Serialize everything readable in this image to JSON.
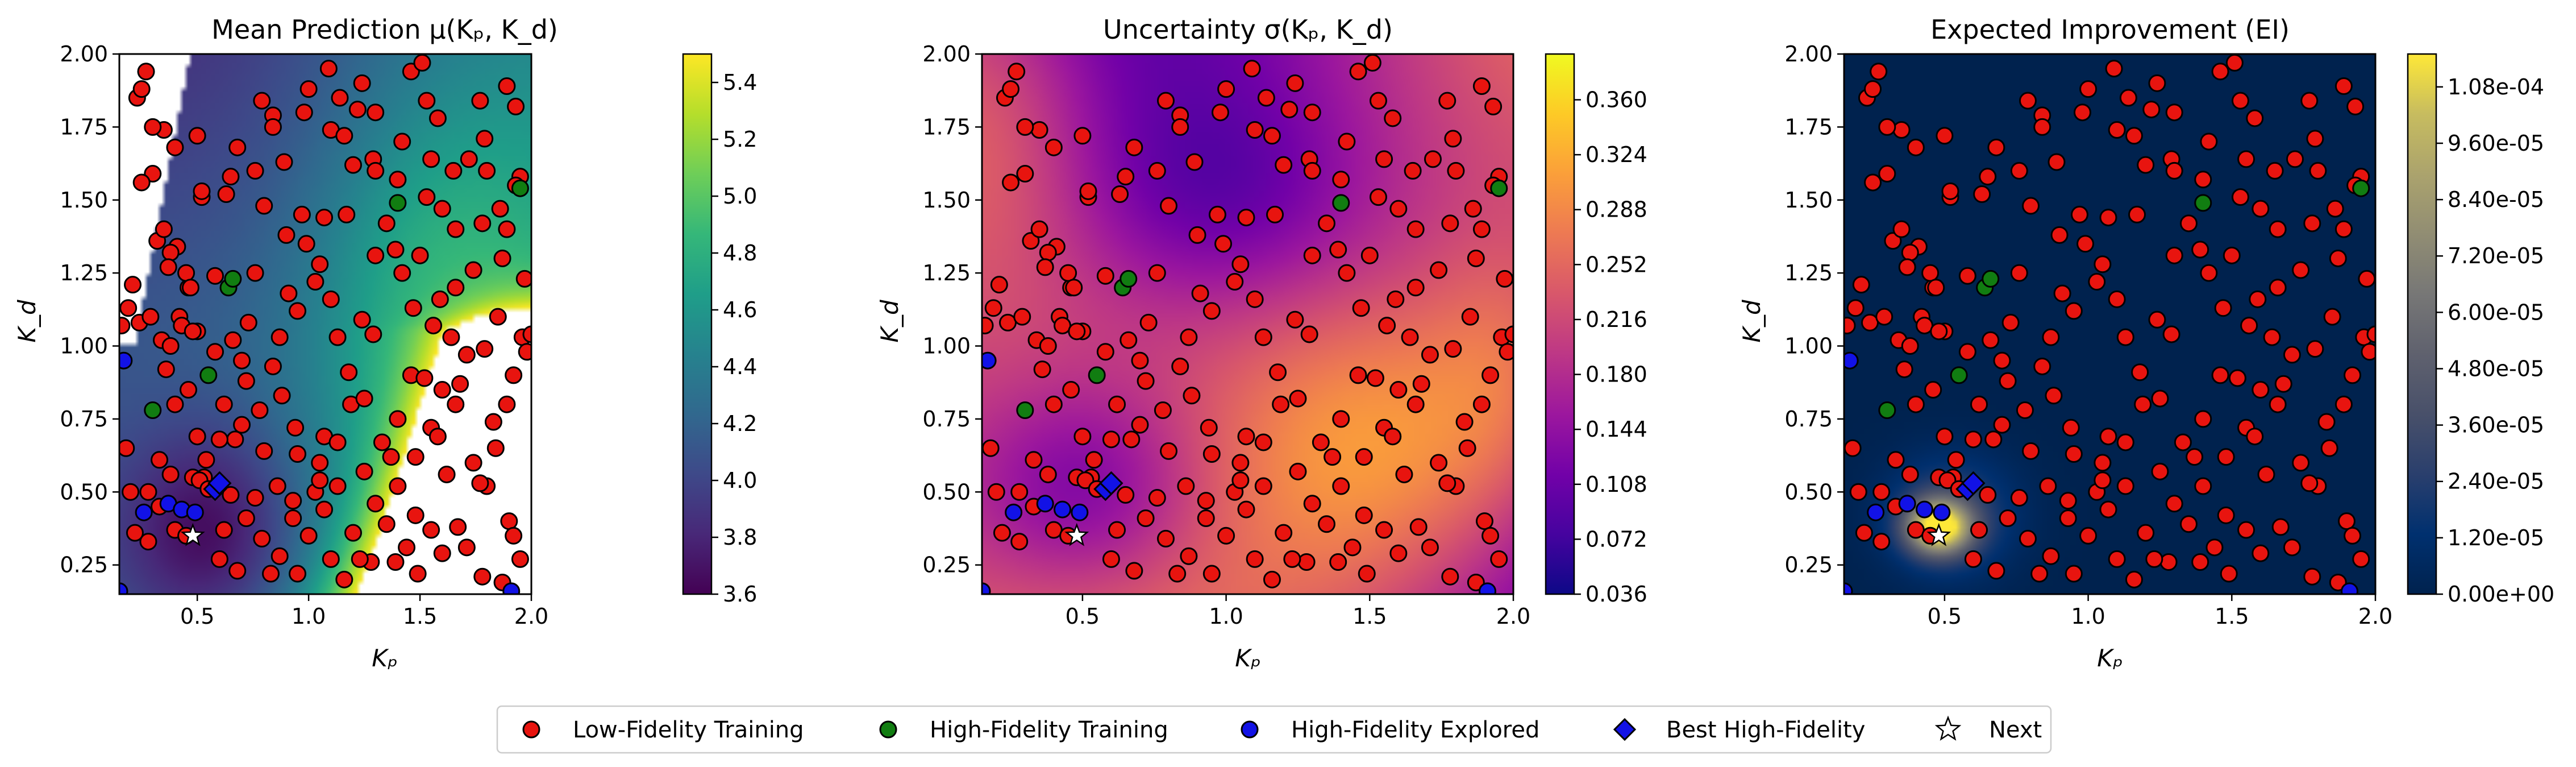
{
  "chart_data": [
    {
      "type": "heatmap",
      "title": "Mean Prediction μ(Kₚ, K_d)",
      "xlabel": "Kₚ",
      "ylabel": "K_d",
      "xlim": [
        0.15,
        2.0
      ],
      "ylim": [
        0.15,
        2.0
      ],
      "xticks": [
        "0.5",
        "1.0",
        "1.5",
        "2.0"
      ],
      "xtick_values": [
        0.5,
        1.0,
        1.5,
        2.0
      ],
      "yticks": [
        "0.25",
        "0.50",
        "0.75",
        "1.00",
        "1.25",
        "1.50",
        "1.75",
        "2.00"
      ],
      "ytick_values": [
        0.25,
        0.5,
        0.75,
        1.0,
        1.25,
        1.5,
        1.75,
        2.0
      ],
      "colormap": "viridis",
      "clim": [
        3.6,
        5.5
      ],
      "colorbar_ticks": [
        "3.6",
        "3.8",
        "4.0",
        "4.2",
        "4.4",
        "4.6",
        "4.8",
        "5.0",
        "5.2",
        "5.4"
      ],
      "colorbar_tick_values": [
        3.6,
        3.8,
        4.0,
        4.2,
        4.4,
        4.6,
        4.8,
        5.0,
        5.2,
        5.4
      ],
      "field": "mean",
      "white_regions": "values above colour range"
    },
    {
      "type": "heatmap",
      "title": "Uncertainty σ(Kₚ, K_d)",
      "xlabel": "Kₚ",
      "ylabel": "K_d",
      "xlim": [
        0.15,
        2.0
      ],
      "ylim": [
        0.15,
        2.0
      ],
      "xticks": [
        "0.5",
        "1.0",
        "1.5",
        "2.0"
      ],
      "xtick_values": [
        0.5,
        1.0,
        1.5,
        2.0
      ],
      "yticks": [
        "0.25",
        "0.50",
        "0.75",
        "1.00",
        "1.25",
        "1.50",
        "1.75",
        "2.00"
      ],
      "ytick_values": [
        0.25,
        0.5,
        0.75,
        1.0,
        1.25,
        1.5,
        1.75,
        2.0
      ],
      "colormap": "plasma",
      "clim": [
        0.036,
        0.39
      ],
      "colorbar_ticks": [
        "0.036",
        "0.072",
        "0.108",
        "0.144",
        "0.180",
        "0.216",
        "0.252",
        "0.288",
        "0.324",
        "0.360"
      ],
      "colorbar_tick_values": [
        0.036,
        0.072,
        0.108,
        0.144,
        0.18,
        0.216,
        0.252,
        0.288,
        0.324,
        0.36
      ],
      "field": "sigma"
    },
    {
      "type": "heatmap",
      "title": "Expected Improvement (EI)",
      "xlabel": "Kₚ",
      "ylabel": "K_d",
      "xlim": [
        0.15,
        2.0
      ],
      "ylim": [
        0.15,
        2.0
      ],
      "xticks": [
        "0.5",
        "1.0",
        "1.5",
        "2.0"
      ],
      "xtick_values": [
        0.5,
        1.0,
        1.5,
        2.0
      ],
      "yticks": [
        "0.25",
        "0.50",
        "0.75",
        "1.00",
        "1.25",
        "1.50",
        "1.75",
        "2.00"
      ],
      "ytick_values": [
        0.25,
        0.5,
        0.75,
        1.0,
        1.25,
        1.5,
        1.75,
        2.0
      ],
      "colormap": "cividis",
      "clim": [
        0,
        0.000115
      ],
      "colorbar_ticks": [
        "0.00e+00",
        "1.20e-05",
        "2.40e-05",
        "3.60e-05",
        "4.80e-05",
        "6.00e-05",
        "7.20e-05",
        "8.40e-05",
        "9.60e-05",
        "1.08e-04"
      ],
      "colorbar_tick_values": [
        0,
        1.2e-05,
        2.4e-05,
        3.6e-05,
        4.8e-05,
        6e-05,
        7.2e-05,
        8.4e-05,
        9.6e-05,
        0.000108
      ],
      "field": "ei"
    }
  ],
  "points": {
    "low_fidelity": [
      [
        0.2,
        0.5
      ],
      [
        0.23,
        1.85
      ],
      [
        0.25,
        1.88
      ],
      [
        0.27,
        1.94
      ],
      [
        0.19,
        1.13
      ],
      [
        0.21,
        1.21
      ],
      [
        0.24,
        1.08
      ],
      [
        0.29,
        1.1
      ],
      [
        0.34,
        1.02
      ],
      [
        0.38,
        1.0
      ],
      [
        0.32,
        1.36
      ],
      [
        0.35,
        1.4
      ],
      [
        0.41,
        1.34
      ],
      [
        0.46,
        1.2
      ],
      [
        0.38,
        1.32
      ],
      [
        0.42,
        1.1
      ],
      [
        0.5,
        1.05
      ],
      [
        0.37,
        1.27
      ],
      [
        0.45,
        1.25
      ],
      [
        0.43,
        1.07
      ],
      [
        0.47,
        1.2
      ],
      [
        0.28,
        0.5
      ],
      [
        0.33,
        0.61
      ],
      [
        0.38,
        0.56
      ],
      [
        0.33,
        0.45
      ],
      [
        0.28,
        0.33
      ],
      [
        0.22,
        0.36
      ],
      [
        0.4,
        0.37
      ],
      [
        0.45,
        0.35
      ],
      [
        0.53,
        0.55
      ],
      [
        0.48,
        0.55
      ],
      [
        0.51,
        0.54
      ],
      [
        0.55,
        0.51
      ],
      [
        0.62,
        0.37
      ],
      [
        0.65,
        0.49
      ],
      [
        0.6,
        0.27
      ],
      [
        0.68,
        0.23
      ],
      [
        0.87,
        0.28
      ],
      [
        1.0,
        0.35
      ],
      [
        0.93,
        0.41
      ],
      [
        0.93,
        0.47
      ],
      [
        1.03,
        0.5
      ],
      [
        1.13,
        0.52
      ],
      [
        1.05,
        0.54
      ],
      [
        1.07,
        0.69
      ],
      [
        1.19,
        0.8
      ],
      [
        1.25,
        0.57
      ],
      [
        1.1,
        0.27
      ],
      [
        0.36,
        0.92
      ],
      [
        0.4,
        1.68
      ],
      [
        0.5,
        1.72
      ],
      [
        0.52,
        1.51
      ],
      [
        0.52,
        1.53
      ],
      [
        0.35,
        1.74
      ],
      [
        0.3,
        1.59
      ],
      [
        0.65,
        1.58
      ],
      [
        0.63,
        1.52
      ],
      [
        0.48,
        1.05
      ],
      [
        0.58,
        0.98
      ],
      [
        0.66,
        1.02
      ],
      [
        0.73,
        1.08
      ],
      [
        0.62,
        0.8
      ],
      [
        0.7,
        0.95
      ],
      [
        0.76,
        1.6
      ],
      [
        0.68,
        1.68
      ],
      [
        0.79,
        1.84
      ],
      [
        0.84,
        1.79
      ],
      [
        0.84,
        1.75
      ],
      [
        0.89,
        1.63
      ],
      [
        0.98,
        1.8
      ],
      [
        1.0,
        1.88
      ],
      [
        1.09,
        1.95
      ],
      [
        1.1,
        1.74
      ],
      [
        1.14,
        1.85
      ],
      [
        1.16,
        1.72
      ],
      [
        1.22,
        1.81
      ],
      [
        1.24,
        1.9
      ],
      [
        1.3,
        1.8
      ],
      [
        1.29,
        1.64
      ],
      [
        1.3,
        1.6
      ],
      [
        1.42,
        1.7
      ],
      [
        1.46,
        1.94
      ],
      [
        1.51,
        1.97
      ],
      [
        1.53,
        1.84
      ],
      [
        1.58,
        1.78
      ],
      [
        1.53,
        1.51
      ],
      [
        1.6,
        1.47
      ],
      [
        1.65,
        1.6
      ],
      [
        1.72,
        1.64
      ],
      [
        1.79,
        1.71
      ],
      [
        1.77,
        1.84
      ],
      [
        1.89,
        1.89
      ],
      [
        1.93,
        1.82
      ],
      [
        1.86,
        1.47
      ],
      [
        1.89,
        1.4
      ],
      [
        1.95,
        1.58
      ],
      [
        1.93,
        1.55
      ],
      [
        1.78,
        1.42
      ],
      [
        1.74,
        1.26
      ],
      [
        1.66,
        1.2
      ],
      [
        1.59,
        1.16
      ],
      [
        1.64,
        1.03
      ],
      [
        1.56,
        1.07
      ],
      [
        1.47,
        1.13
      ],
      [
        1.5,
        1.31
      ],
      [
        1.42,
        1.25
      ],
      [
        1.39,
        1.33
      ],
      [
        1.35,
        1.42
      ],
      [
        1.3,
        1.31
      ],
      [
        1.29,
        1.04
      ],
      [
        1.24,
        1.09
      ],
      [
        1.13,
        1.03
      ],
      [
        1.1,
        1.16
      ],
      [
        1.05,
        1.28
      ],
      [
        1.03,
        1.22
      ],
      [
        0.99,
        1.35
      ],
      [
        0.95,
        1.12
      ],
      [
        0.91,
        1.18
      ],
      [
        0.87,
        1.03
      ],
      [
        0.84,
        0.93
      ],
      [
        0.88,
        0.83
      ],
      [
        0.78,
        0.78
      ],
      [
        0.72,
        0.88
      ],
      [
        0.94,
        0.72
      ],
      [
        0.95,
        0.63
      ],
      [
        1.05,
        0.6
      ],
      [
        1.13,
        0.67
      ],
      [
        1.18,
        0.91
      ],
      [
        1.25,
        0.82
      ],
      [
        1.33,
        0.67
      ],
      [
        1.37,
        0.62
      ],
      [
        1.4,
        0.75
      ],
      [
        1.46,
        0.9
      ],
      [
        1.52,
        0.89
      ],
      [
        1.55,
        0.72
      ],
      [
        1.58,
        0.69
      ],
      [
        1.6,
        0.85
      ],
      [
        1.66,
        0.8
      ],
      [
        1.68,
        0.87
      ],
      [
        1.71,
        0.97
      ],
      [
        1.79,
        0.99
      ],
      [
        1.85,
        1.1
      ],
      [
        1.96,
        1.03
      ],
      [
        1.98,
        0.98
      ],
      [
        1.92,
        0.9
      ],
      [
        1.89,
        0.8
      ],
      [
        1.83,
        0.74
      ],
      [
        1.8,
        0.52
      ],
      [
        1.77,
        0.53
      ],
      [
        1.9,
        0.4
      ],
      [
        1.92,
        0.35
      ],
      [
        1.95,
        0.27
      ],
      [
        1.87,
        0.19
      ],
      [
        1.78,
        0.21
      ],
      [
        1.71,
        0.31
      ],
      [
        1.67,
        0.38
      ],
      [
        1.6,
        0.29
      ],
      [
        1.55,
        0.37
      ],
      [
        1.48,
        0.42
      ],
      [
        1.44,
        0.31
      ],
      [
        1.39,
        0.26
      ],
      [
        1.28,
        0.26
      ],
      [
        1.23,
        0.27
      ],
      [
        1.2,
        0.36
      ],
      [
        1.3,
        0.46
      ],
      [
        1.16,
        0.2
      ],
      [
        0.79,
        0.34
      ],
      [
        0.72,
        0.41
      ],
      [
        0.86,
        0.52
      ],
      [
        0.8,
        0.64
      ],
      [
        0.7,
        0.73
      ],
      [
        0.67,
        0.68
      ],
      [
        0.6,
        0.68
      ],
      [
        0.54,
        0.61
      ],
      [
        0.5,
        0.69
      ],
      [
        0.4,
        0.8
      ],
      [
        0.46,
        0.85
      ],
      [
        0.18,
        0.65
      ],
      [
        0.16,
        1.07
      ],
      [
        0.25,
        1.56
      ],
      [
        0.3,
        1.75
      ],
      [
        0.58,
        1.24
      ],
      [
        0.76,
        1.25
      ],
      [
        0.8,
        1.48
      ],
      [
        0.9,
        1.38
      ],
      [
        0.97,
        1.45
      ],
      [
        1.07,
        1.44
      ],
      [
        1.17,
        1.45
      ],
      [
        1.2,
        1.62
      ],
      [
        1.4,
        1.57
      ],
      [
        1.55,
        1.64
      ],
      [
        1.66,
        1.4
      ],
      [
        1.8,
        1.6
      ],
      [
        1.87,
        1.3
      ],
      [
        1.97,
        1.23
      ],
      [
        2.0,
        1.04
      ],
      [
        1.84,
        0.65
      ],
      [
        1.74,
        0.6
      ],
      [
        1.62,
        0.56
      ],
      [
        1.48,
        0.62
      ],
      [
        1.4,
        0.52
      ],
      [
        1.35,
        0.39
      ],
      [
        1.49,
        0.22
      ],
      [
        1.07,
        0.44
      ],
      [
        0.95,
        0.22
      ],
      [
        0.83,
        0.22
      ],
      [
        0.76,
        0.48
      ]
    ],
    "high_fidelity": [
      [
        0.3,
        0.78
      ],
      [
        0.55,
        0.9
      ],
      [
        0.64,
        1.2
      ],
      [
        0.66,
        1.23
      ],
      [
        1.4,
        1.49
      ],
      [
        1.95,
        1.54
      ]
    ],
    "high_fidelity_explored": [
      [
        0.17,
        0.95
      ],
      [
        0.26,
        0.43
      ],
      [
        0.37,
        0.46
      ],
      [
        0.43,
        0.44
      ],
      [
        0.49,
        0.43
      ],
      [
        0.15,
        0.16
      ],
      [
        1.91,
        0.16
      ]
    ],
    "best_high_fidelity": [
      [
        0.58,
        0.51
      ],
      [
        0.6,
        0.53
      ]
    ],
    "next": [
      [
        0.48,
        0.35
      ]
    ]
  },
  "legend": {
    "items": [
      {
        "label": "Low-Fidelity Training",
        "marker": "circle",
        "color": "#e8140f"
      },
      {
        "label": "High-Fidelity Training",
        "marker": "circle",
        "color": "#117d11"
      },
      {
        "label": "High-Fidelity Explored",
        "marker": "circle",
        "color": "#1212e6"
      },
      {
        "label": "Best High-Fidelity",
        "marker": "diamond",
        "color": "#1212e6"
      },
      {
        "label": "Next",
        "marker": "star",
        "color": "#ffffff"
      }
    ],
    "placement": "bottom-center"
  }
}
